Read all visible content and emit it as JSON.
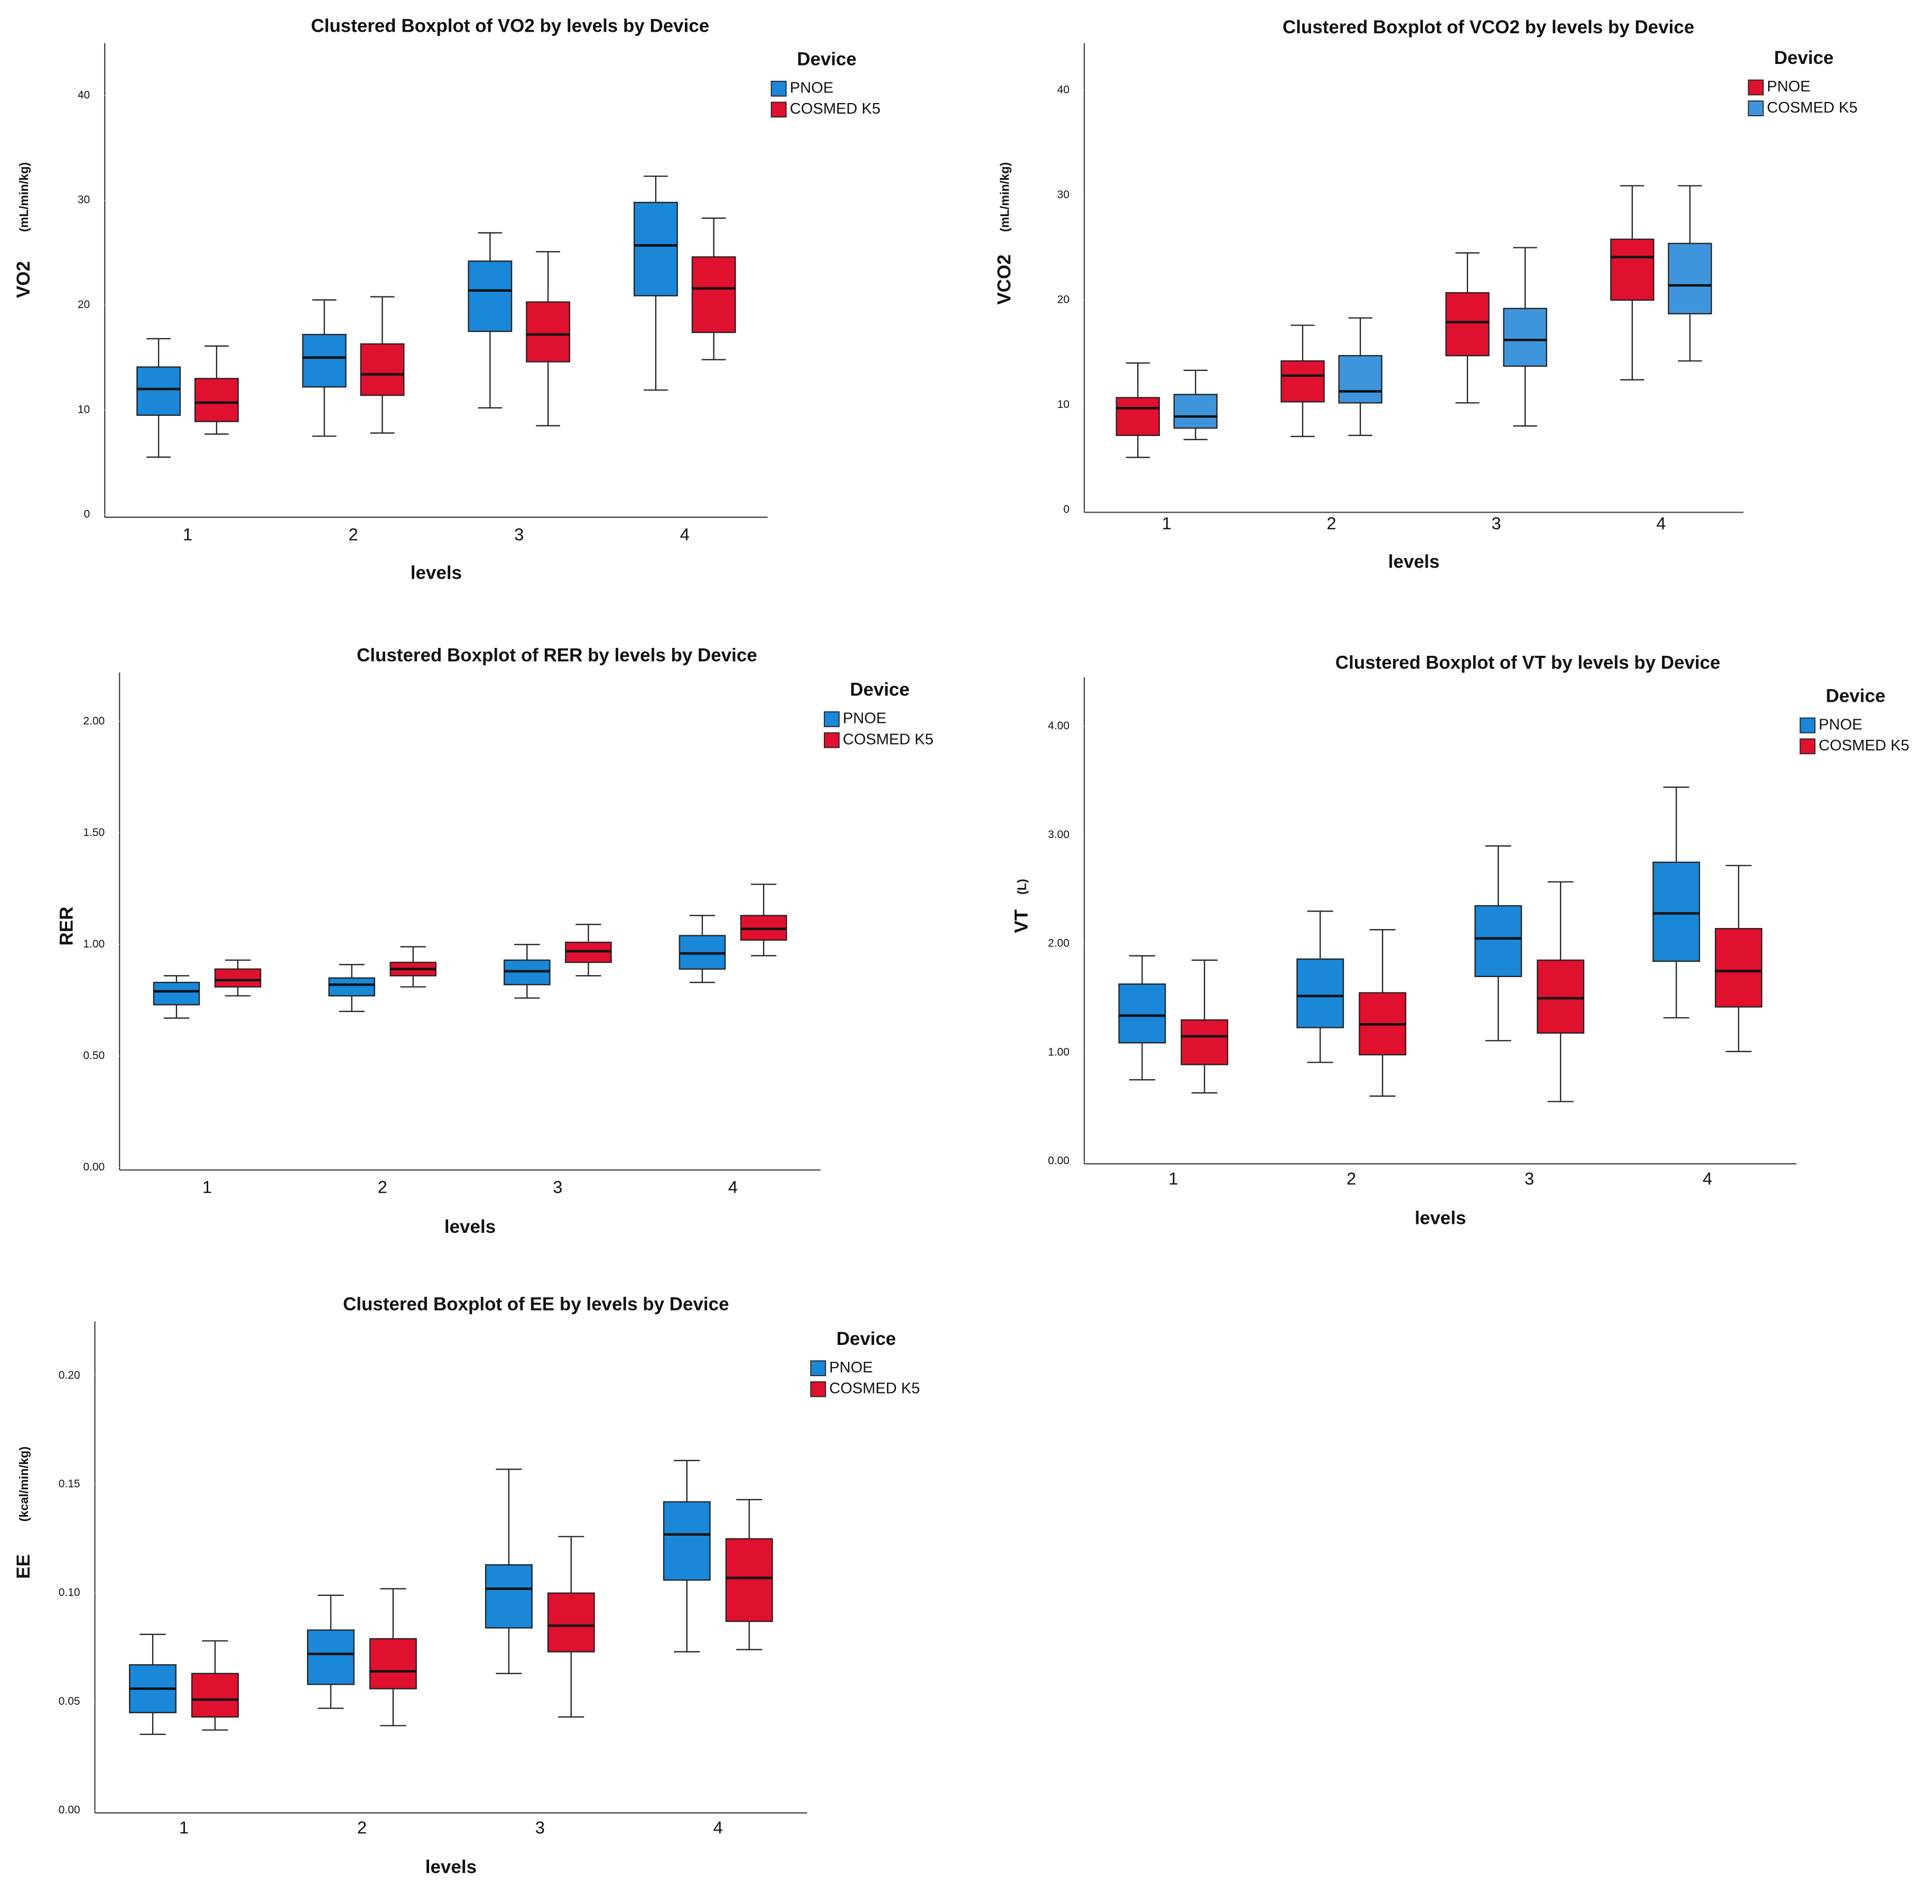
{
  "chart_data": [
    {
      "type": "box",
      "title": "Clustered Boxplot of VO2 by levels by Device",
      "x_label": "levels",
      "y_label": "VO2",
      "y_unit": "(mL/min/kg)",
      "legend_title": "Device",
      "categories": [
        "1",
        "2",
        "3",
        "4"
      ],
      "ylim": [
        0,
        45
      ],
      "yticks": [
        0,
        10,
        20,
        30,
        40
      ],
      "series": [
        {
          "name": "PNOE",
          "color": "#1a87d8",
          "min": [
            5.5,
            7.5,
            10.2,
            11.9
          ],
          "q1": [
            9.5,
            12.2,
            17.5,
            20.9
          ],
          "median": [
            12.0,
            15.0,
            21.4,
            25.7
          ],
          "q3": [
            14.1,
            17.2,
            24.2,
            29.8
          ],
          "max": [
            16.8,
            20.5,
            26.9,
            32.3
          ]
        },
        {
          "name": "COSMED K5",
          "color": "#e0102f",
          "min": [
            7.7,
            7.8,
            8.5,
            14.8
          ],
          "q1": [
            8.9,
            11.4,
            14.6,
            17.4
          ],
          "median": [
            10.7,
            13.4,
            17.2,
            21.6
          ],
          "q3": [
            13.0,
            16.3,
            20.3,
            24.6
          ],
          "max": [
            16.1,
            20.8,
            25.1,
            28.3
          ]
        }
      ]
    },
    {
      "type": "box",
      "title": "Clustered Boxplot of VCO2 by levels by Device",
      "x_label": "levels",
      "y_label": "VCO2",
      "y_unit": "(mL/min/kg)",
      "legend_title": "Device",
      "categories": [
        "1",
        "2",
        "3",
        "4"
      ],
      "ylim": [
        0,
        44.5
      ],
      "yticks": [
        0,
        10,
        20,
        30,
        40
      ],
      "series": [
        {
          "name": "PNOE",
          "color": "#e0102f",
          "min": [
            5.0,
            7.0,
            10.2,
            12.4
          ],
          "q1": [
            7.1,
            10.3,
            14.7,
            20.0
          ],
          "median": [
            9.7,
            12.8,
            17.9,
            24.1
          ],
          "q3": [
            10.7,
            14.2,
            20.7,
            25.8
          ],
          "max": [
            14.0,
            17.6,
            24.5,
            30.9
          ]
        },
        {
          "name": "COSMED K5",
          "color": "#3f95dc",
          "min": [
            6.7,
            7.1,
            8.0,
            14.2
          ],
          "q1": [
            7.8,
            10.2,
            13.7,
            18.7
          ],
          "median": [
            8.9,
            11.3,
            16.2,
            21.4
          ],
          "q3": [
            11.0,
            14.7,
            19.2,
            25.4
          ],
          "max": [
            13.3,
            18.3,
            25.0,
            30.9
          ]
        }
      ]
    },
    {
      "type": "box",
      "title": "Clustered Boxplot of RER by levels by Device",
      "x_label": "levels",
      "y_label": "RER",
      "legend_title": "Device",
      "categories": [
        "1",
        "2",
        "3",
        "4"
      ],
      "ylim": [
        0,
        2.22
      ],
      "yticks": [
        {
          "value": 0,
          "label": "0.00"
        },
        {
          "value": 0.5,
          "label": "0.50"
        },
        {
          "value": 1,
          "label": "1.00"
        },
        {
          "value": 1.5,
          "label": "1.50"
        },
        {
          "value": 2,
          "label": "2.00"
        }
      ],
      "series": [
        {
          "name": "PNOE",
          "color": "#1a87d8",
          "min": [
            0.67,
            0.7,
            0.76,
            0.83
          ],
          "q1": [
            0.73,
            0.77,
            0.82,
            0.89
          ],
          "median": [
            0.79,
            0.82,
            0.88,
            0.96
          ],
          "q3": [
            0.83,
            0.85,
            0.93,
            1.04
          ],
          "max": [
            0.86,
            0.91,
            1.0,
            1.13
          ]
        },
        {
          "name": "COSMED K5",
          "color": "#e0102f",
          "min": [
            0.77,
            0.81,
            0.86,
            0.95
          ],
          "q1": [
            0.81,
            0.86,
            0.92,
            1.02
          ],
          "median": [
            0.84,
            0.89,
            0.97,
            1.07
          ],
          "q3": [
            0.89,
            0.92,
            1.01,
            1.13
          ],
          "max": [
            0.93,
            0.99,
            1.09,
            1.27
          ]
        }
      ]
    },
    {
      "type": "box",
      "title": "Clustered Boxplot of VT by levels by Device",
      "x_label": "levels",
      "y_label": "VT",
      "y_unit": "(L)",
      "legend_title": "Device",
      "categories": [
        "1",
        "2",
        "3",
        "4"
      ],
      "ylim": [
        0,
        4.45
      ],
      "yticks": [
        {
          "value": 0,
          "label": "0.00"
        },
        {
          "value": 1,
          "label": "1.00"
        },
        {
          "value": 2,
          "label": "2.00"
        },
        {
          "value": 3,
          "label": "3.00"
        },
        {
          "value": 4,
          "label": "4.00"
        }
      ],
      "series": [
        {
          "name": "PNOE",
          "color": "#1a87d8",
          "min": [
            0.75,
            0.91,
            1.11,
            1.32
          ],
          "q1": [
            1.09,
            1.23,
            1.7,
            1.84
          ],
          "median": [
            1.34,
            1.52,
            2.05,
            2.28
          ],
          "q3": [
            1.63,
            1.86,
            2.35,
            2.75
          ],
          "max": [
            1.89,
            2.3,
            2.9,
            3.44
          ]
        },
        {
          "name": "COSMED K5",
          "color": "#e0102f",
          "min": [
            0.63,
            0.6,
            0.55,
            1.01
          ],
          "q1": [
            0.89,
            0.98,
            1.18,
            1.42
          ],
          "median": [
            1.15,
            1.26,
            1.5,
            1.75
          ],
          "q3": [
            1.3,
            1.55,
            1.85,
            2.14
          ],
          "max": [
            1.85,
            2.13,
            2.57,
            2.72
          ]
        }
      ]
    },
    {
      "type": "box",
      "title": "Clustered Boxplot of EE by levels by Device",
      "x_label": "levels",
      "y_label": "EE",
      "y_unit": "(kcal/min/kg)",
      "legend_title": "Device",
      "categories": [
        "1",
        "2",
        "3",
        "4"
      ],
      "ylim": [
        0,
        0.225
      ],
      "yticks": [
        {
          "value": 0,
          "label": "0.00"
        },
        {
          "value": 0.05,
          "label": "0.05"
        },
        {
          "value": 0.1,
          "label": "0.10"
        },
        {
          "value": 0.15,
          "label": "0.15"
        },
        {
          "value": 0.2,
          "label": "0.20"
        }
      ],
      "series": [
        {
          "name": "PNOE",
          "color": "#1a87d8",
          "min": [
            0.035,
            0.047,
            0.063,
            0.073
          ],
          "q1": [
            0.045,
            0.058,
            0.084,
            0.106
          ],
          "median": [
            0.056,
            0.072,
            0.102,
            0.127
          ],
          "q3": [
            0.067,
            0.083,
            0.113,
            0.142
          ],
          "max": [
            0.081,
            0.099,
            0.157,
            0.161
          ]
        },
        {
          "name": "COSMED K5",
          "color": "#e0102f",
          "min": [
            0.037,
            0.039,
            0.043,
            0.074
          ],
          "q1": [
            0.043,
            0.056,
            0.073,
            0.087
          ],
          "median": [
            0.051,
            0.064,
            0.085,
            0.107
          ],
          "q3": [
            0.063,
            0.079,
            0.1,
            0.125
          ],
          "max": [
            0.078,
            0.102,
            0.126,
            0.143
          ]
        }
      ]
    }
  ]
}
